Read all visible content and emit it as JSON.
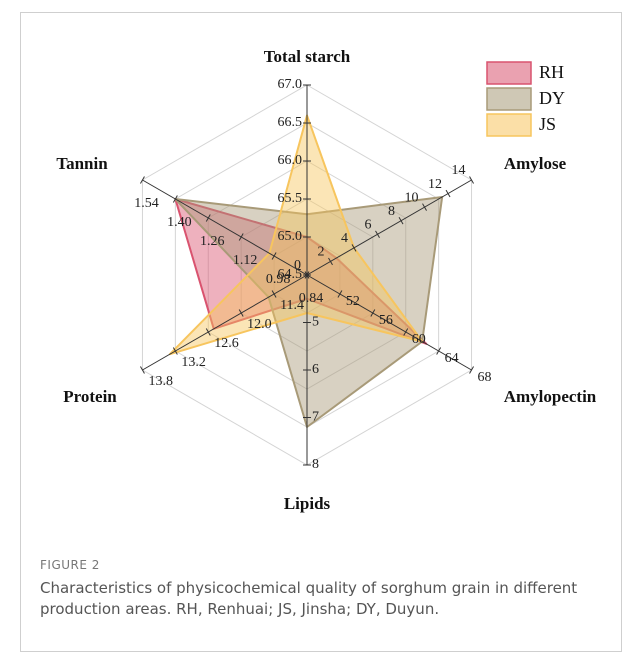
{
  "chart_data": {
    "type": "radar",
    "axes": [
      {
        "label": "Total starch",
        "lim": [
          64.5,
          67.0
        ],
        "ticks": [
          64.5,
          {
            "value": 65.0,
            "label": "65.0"
          },
          65.5,
          {
            "value": 66.0,
            "label": "66.0"
          },
          66.5,
          {
            "value": 67.0,
            "label": "67.0"
          }
        ]
      },
      {
        "label": "Amylose",
        "lim": [
          0,
          14
        ],
        "ticks": [
          0,
          2,
          4,
          6,
          8,
          10,
          12,
          14
        ]
      },
      {
        "label": "Amylopectin",
        "lim": [
          48,
          68
        ],
        "ticks": [
          52,
          56,
          60,
          64,
          68
        ]
      },
      {
        "label": "Lipids",
        "lim": [
          4,
          8
        ],
        "ticks": [
          5,
          6,
          7,
          8
        ]
      },
      {
        "label": "Protein",
        "lim": [
          10.8,
          13.8
        ],
        "ticks": [
          11.4,
          {
            "value": 12.0,
            "label": "12.0"
          },
          12.6,
          13.2,
          13.8
        ]
      },
      {
        "label": "Tannin",
        "lim": [
          0.84,
          1.54
        ],
        "ticks": [
          0.84,
          0.98,
          1.12,
          1.26,
          {
            "value": 1.4,
            "label": "1.40"
          },
          1.54
        ]
      }
    ],
    "series": [
      {
        "name": "RH",
        "color": "#d9536f",
        "values": [
          65.0,
          2.5,
          62.5,
          4.5,
          12.5,
          1.4
        ]
      },
      {
        "name": "DY",
        "color": "#a89a78",
        "values": [
          65.3,
          11.5,
          62.0,
          7.2,
          11.5,
          1.4
        ]
      },
      {
        "name": "JS",
        "color": "#f7c55e",
        "values": [
          66.6,
          4.0,
          62.0,
          4.8,
          13.3,
          1.0
        ]
      }
    ],
    "legend": "upper right",
    "figure_label": "FIGURE 2",
    "caption": "Characteristics of physicochemical quality of sorghum grain in different production areas. RH, Renhuai; JS, Jinsha; DY, Duyun."
  }
}
